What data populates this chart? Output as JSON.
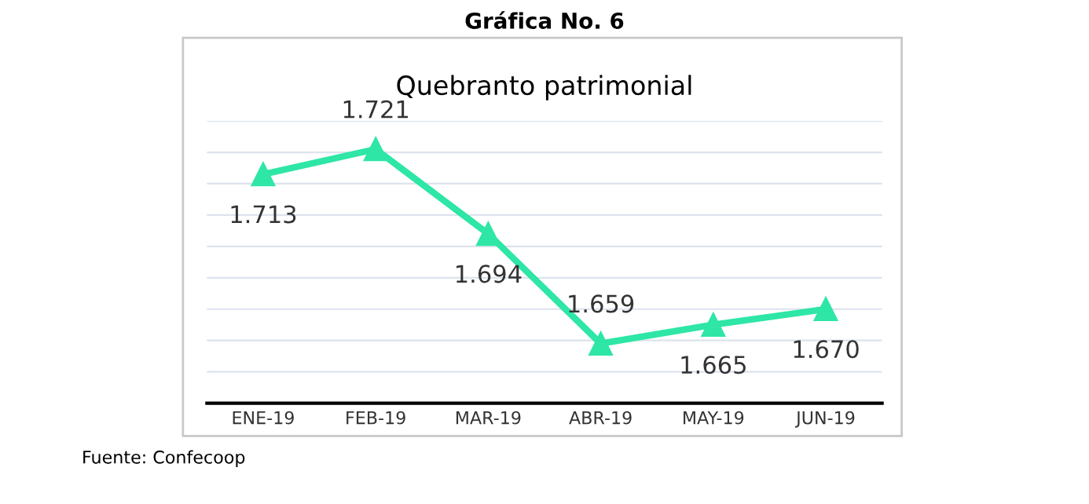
{
  "chart_data": {
    "type": "line",
    "title": "Quebranto patrimonial",
    "subtitle": "Gráfica No. 6",
    "annotations": [
      "Fuente: Confecoop"
    ],
    "categories": [
      "ENE-19",
      "FEB-19",
      "MAR-19",
      "ABR-19",
      "MAY-19",
      "JUN-19"
    ],
    "series": [
      {
        "color": "#2ee6a6",
        "values": [
          1713,
          1721,
          1694,
          1659,
          1665,
          1670
        ],
        "value_labels": [
          "1.713",
          "1.721",
          "1.694",
          "1.659",
          "1.665",
          "1.670"
        ]
      }
    ],
    "ylim": [
      1640,
      1730
    ],
    "yticks": [
      {
        "value": 1650,
        "label": null
      },
      {
        "value": 1660,
        "label": null
      },
      {
        "value": 1670,
        "label": null
      },
      {
        "value": 1680,
        "label": null
      },
      {
        "value": 1690,
        "label": null
      },
      {
        "value": 1700,
        "label": null
      },
      {
        "value": 1710,
        "label": null
      },
      {
        "value": 1720,
        "label": null
      },
      {
        "value": 1730,
        "label": null
      }
    ],
    "grid": "y",
    "tick_labels": "x",
    "marker": "triangle",
    "line_style": "solid"
  }
}
